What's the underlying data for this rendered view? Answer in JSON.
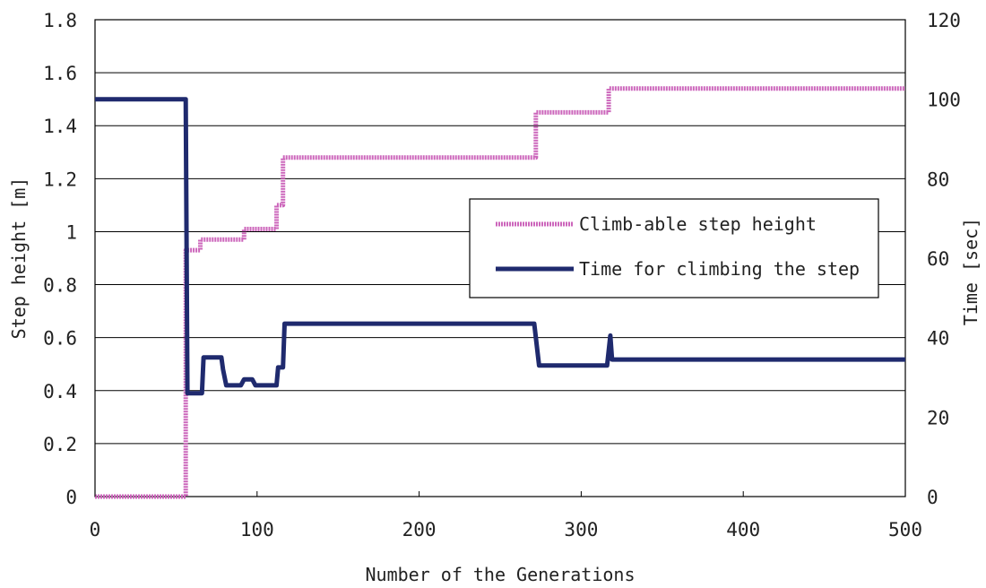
{
  "chart_data": {
    "type": "line",
    "title": "",
    "xlabel": "Number of the Generations",
    "ylabel_left": "Step height [m]",
    "ylabel_right": "Time [sec]",
    "xlim": [
      0,
      500
    ],
    "ylim_left": [
      0,
      1.8
    ],
    "ylim_right": [
      0,
      120
    ],
    "x_ticks": [
      "0",
      "100",
      "200",
      "300",
      "400",
      "500"
    ],
    "y_left_ticks": [
      "0",
      "0.2",
      "0.4",
      "0.6",
      "0.8",
      "1",
      "1.2",
      "1.4",
      "1.6",
      "1.8"
    ],
    "y_right_ticks": [
      "0",
      "20",
      "40",
      "60",
      "80",
      "100",
      "120"
    ],
    "grid": "horizontal",
    "legend_position": "right",
    "series": [
      {
        "name": "Climb-able step height",
        "axis": "left",
        "color": "#cc66bb",
        "style": "step",
        "points": [
          [
            0,
            0
          ],
          [
            56,
            0
          ],
          [
            56,
            0.93
          ],
          [
            65,
            0.93
          ],
          [
            65,
            0.97
          ],
          [
            92,
            0.97
          ],
          [
            92,
            1.01
          ],
          [
            112,
            1.01
          ],
          [
            112,
            1.1
          ],
          [
            116,
            1.1
          ],
          [
            116,
            1.28
          ],
          [
            272,
            1.28
          ],
          [
            272,
            1.45
          ],
          [
            317,
            1.45
          ],
          [
            317,
            1.54
          ],
          [
            500,
            1.54
          ]
        ]
      },
      {
        "name": "Time for climbing the step",
        "axis": "right",
        "color": "#1f2a6e",
        "style": "line",
        "points": [
          [
            0,
            100
          ],
          [
            56,
            100
          ],
          [
            57,
            26
          ],
          [
            66,
            26
          ],
          [
            67,
            35
          ],
          [
            78,
            35
          ],
          [
            79,
            32
          ],
          [
            81,
            28
          ],
          [
            90,
            28
          ],
          [
            92,
            29.5
          ],
          [
            97,
            29.5
          ],
          [
            99,
            28
          ],
          [
            112,
            28
          ],
          [
            113,
            32.5
          ],
          [
            116,
            32.5
          ],
          [
            117,
            43.5
          ],
          [
            271,
            43.5
          ],
          [
            274,
            33
          ],
          [
            316,
            33
          ],
          [
            318,
            40.5
          ],
          [
            319,
            34.5
          ],
          [
            500,
            34.5
          ]
        ]
      }
    ]
  }
}
